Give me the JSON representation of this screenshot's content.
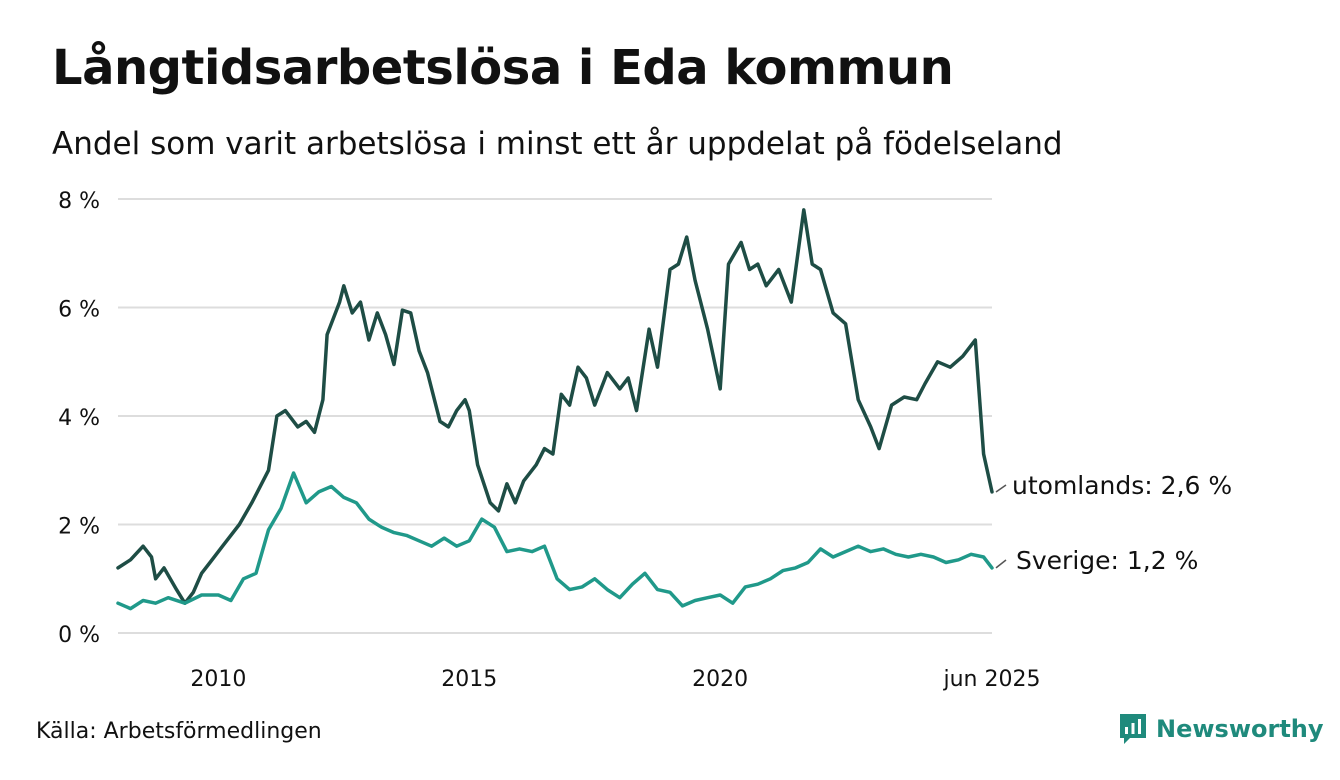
{
  "title": "Långtidsarbetslösa i Eda kommun",
  "subtitle": "Andel som varit arbetslösa i minst ett år uppdelat på födelseland",
  "source": "Källa: Arbetsförmedlingen",
  "brand": "Newsworthy",
  "colors": {
    "utomlands": "#1e4d45",
    "sverige": "#20998a",
    "grid": "#dddddd",
    "brand": "#1f8a7c"
  },
  "chart_data": {
    "type": "line",
    "ylim": [
      0,
      8
    ],
    "y_ticks": [
      {
        "value": 0,
        "label": "0 %"
      },
      {
        "value": 2,
        "label": "2 %"
      },
      {
        "value": 4,
        "label": "4 %"
      },
      {
        "value": 6,
        "label": "6 %"
      },
      {
        "value": 8,
        "label": "8 %"
      }
    ],
    "x_range": [
      "2008-01",
      "2025-06"
    ],
    "x_ticks": [
      {
        "date": "2010-01",
        "label": "2010"
      },
      {
        "date": "2015-01",
        "label": "2015"
      },
      {
        "date": "2020-01",
        "label": "2020"
      },
      {
        "date": "2025-06",
        "label": "jun 2025"
      }
    ],
    "grid": true,
    "series": [
      {
        "key": "utomlands",
        "end_label": "utomlands: 2,6 %",
        "points": [
          [
            "2008-01",
            1.2
          ],
          [
            "2008-04",
            1.35
          ],
          [
            "2008-07",
            1.6
          ],
          [
            "2008-09",
            1.4
          ],
          [
            "2008-10",
            1.0
          ],
          [
            "2008-12",
            1.2
          ],
          [
            "2009-03",
            0.8
          ],
          [
            "2009-05",
            0.55
          ],
          [
            "2009-07",
            0.75
          ],
          [
            "2009-09",
            1.1
          ],
          [
            "2009-11",
            1.3
          ],
          [
            "2010-02",
            1.6
          ],
          [
            "2010-06",
            2.0
          ],
          [
            "2010-09",
            2.4
          ],
          [
            "2011-01",
            3.0
          ],
          [
            "2011-03",
            4.0
          ],
          [
            "2011-05",
            4.1
          ],
          [
            "2011-08",
            3.8
          ],
          [
            "2011-10",
            3.9
          ],
          [
            "2011-12",
            3.7
          ],
          [
            "2012-02",
            4.3
          ],
          [
            "2012-03",
            5.5
          ],
          [
            "2012-06",
            6.1
          ],
          [
            "2012-07",
            6.4
          ],
          [
            "2012-09",
            5.9
          ],
          [
            "2012-11",
            6.1
          ],
          [
            "2013-01",
            5.4
          ],
          [
            "2013-03",
            5.9
          ],
          [
            "2013-05",
            5.5
          ],
          [
            "2013-07",
            4.95
          ],
          [
            "2013-09",
            5.95
          ],
          [
            "2013-11",
            5.9
          ],
          [
            "2014-01",
            5.2
          ],
          [
            "2014-03",
            4.8
          ],
          [
            "2014-06",
            3.9
          ],
          [
            "2014-08",
            3.8
          ],
          [
            "2014-10",
            4.1
          ],
          [
            "2014-12",
            4.3
          ],
          [
            "2015-01",
            4.1
          ],
          [
            "2015-03",
            3.1
          ],
          [
            "2015-06",
            2.4
          ],
          [
            "2015-08",
            2.25
          ],
          [
            "2015-10",
            2.75
          ],
          [
            "2015-12",
            2.4
          ],
          [
            "2016-02",
            2.8
          ],
          [
            "2016-05",
            3.1
          ],
          [
            "2016-07",
            3.4
          ],
          [
            "2016-09",
            3.3
          ],
          [
            "2016-11",
            4.4
          ],
          [
            "2017-01",
            4.2
          ],
          [
            "2017-03",
            4.9
          ],
          [
            "2017-05",
            4.7
          ],
          [
            "2017-07",
            4.2
          ],
          [
            "2017-10",
            4.8
          ],
          [
            "2018-01",
            4.5
          ],
          [
            "2018-03",
            4.7
          ],
          [
            "2018-05",
            4.1
          ],
          [
            "2018-08",
            5.6
          ],
          [
            "2018-10",
            4.9
          ],
          [
            "2019-01",
            6.7
          ],
          [
            "2019-03",
            6.8
          ],
          [
            "2019-05",
            7.3
          ],
          [
            "2019-07",
            6.5
          ],
          [
            "2019-10",
            5.6
          ],
          [
            "2020-01",
            4.5
          ],
          [
            "2020-03",
            6.8
          ],
          [
            "2020-06",
            7.2
          ],
          [
            "2020-08",
            6.7
          ],
          [
            "2020-10",
            6.8
          ],
          [
            "2020-12",
            6.4
          ],
          [
            "2021-03",
            6.7
          ],
          [
            "2021-06",
            6.1
          ],
          [
            "2021-09",
            7.8
          ],
          [
            "2021-11",
            6.8
          ],
          [
            "2022-01",
            6.7
          ],
          [
            "2022-04",
            5.9
          ],
          [
            "2022-07",
            5.7
          ],
          [
            "2022-10",
            4.3
          ],
          [
            "2023-01",
            3.8
          ],
          [
            "2023-03",
            3.4
          ],
          [
            "2023-06",
            4.2
          ],
          [
            "2023-09",
            4.35
          ],
          [
            "2023-12",
            4.3
          ],
          [
            "2024-02",
            4.6
          ],
          [
            "2024-05",
            5.0
          ],
          [
            "2024-08",
            4.9
          ],
          [
            "2024-11",
            5.1
          ],
          [
            "2025-02",
            5.4
          ],
          [
            "2025-04",
            3.3
          ],
          [
            "2025-06",
            2.6
          ]
        ]
      },
      {
        "key": "sverige",
        "end_label": "Sverige: 1,2 %",
        "points": [
          [
            "2008-01",
            0.55
          ],
          [
            "2008-04",
            0.45
          ],
          [
            "2008-07",
            0.6
          ],
          [
            "2008-10",
            0.55
          ],
          [
            "2009-01",
            0.65
          ],
          [
            "2009-05",
            0.55
          ],
          [
            "2009-09",
            0.7
          ],
          [
            "2010-01",
            0.7
          ],
          [
            "2010-04",
            0.6
          ],
          [
            "2010-07",
            1.0
          ],
          [
            "2010-10",
            1.1
          ],
          [
            "2011-01",
            1.9
          ],
          [
            "2011-04",
            2.3
          ],
          [
            "2011-07",
            2.95
          ],
          [
            "2011-10",
            2.4
          ],
          [
            "2012-01",
            2.6
          ],
          [
            "2012-04",
            2.7
          ],
          [
            "2012-07",
            2.5
          ],
          [
            "2012-10",
            2.4
          ],
          [
            "2013-01",
            2.1
          ],
          [
            "2013-04",
            1.95
          ],
          [
            "2013-07",
            1.85
          ],
          [
            "2013-10",
            1.8
          ],
          [
            "2014-01",
            1.7
          ],
          [
            "2014-04",
            1.6
          ],
          [
            "2014-07",
            1.75
          ],
          [
            "2014-10",
            1.6
          ],
          [
            "2015-01",
            1.7
          ],
          [
            "2015-04",
            2.1
          ],
          [
            "2015-07",
            1.95
          ],
          [
            "2015-10",
            1.5
          ],
          [
            "2016-01",
            1.55
          ],
          [
            "2016-04",
            1.5
          ],
          [
            "2016-07",
            1.6
          ],
          [
            "2016-10",
            1.0
          ],
          [
            "2017-01",
            0.8
          ],
          [
            "2017-04",
            0.85
          ],
          [
            "2017-07",
            1.0
          ],
          [
            "2017-10",
            0.8
          ],
          [
            "2018-01",
            0.65
          ],
          [
            "2018-04",
            0.9
          ],
          [
            "2018-07",
            1.1
          ],
          [
            "2018-10",
            0.8
          ],
          [
            "2019-01",
            0.75
          ],
          [
            "2019-04",
            0.5
          ],
          [
            "2019-07",
            0.6
          ],
          [
            "2019-10",
            0.65
          ],
          [
            "2020-01",
            0.7
          ],
          [
            "2020-04",
            0.55
          ],
          [
            "2020-07",
            0.85
          ],
          [
            "2020-10",
            0.9
          ],
          [
            "2021-01",
            1.0
          ],
          [
            "2021-04",
            1.15
          ],
          [
            "2021-07",
            1.2
          ],
          [
            "2021-10",
            1.3
          ],
          [
            "2022-01",
            1.55
          ],
          [
            "2022-04",
            1.4
          ],
          [
            "2022-07",
            1.5
          ],
          [
            "2022-10",
            1.6
          ],
          [
            "2023-01",
            1.5
          ],
          [
            "2023-04",
            1.55
          ],
          [
            "2023-07",
            1.45
          ],
          [
            "2023-10",
            1.4
          ],
          [
            "2024-01",
            1.45
          ],
          [
            "2024-04",
            1.4
          ],
          [
            "2024-07",
            1.3
          ],
          [
            "2024-10",
            1.35
          ],
          [
            "2025-01",
            1.45
          ],
          [
            "2025-04",
            1.4
          ],
          [
            "2025-06",
            1.2
          ]
        ]
      }
    ]
  }
}
